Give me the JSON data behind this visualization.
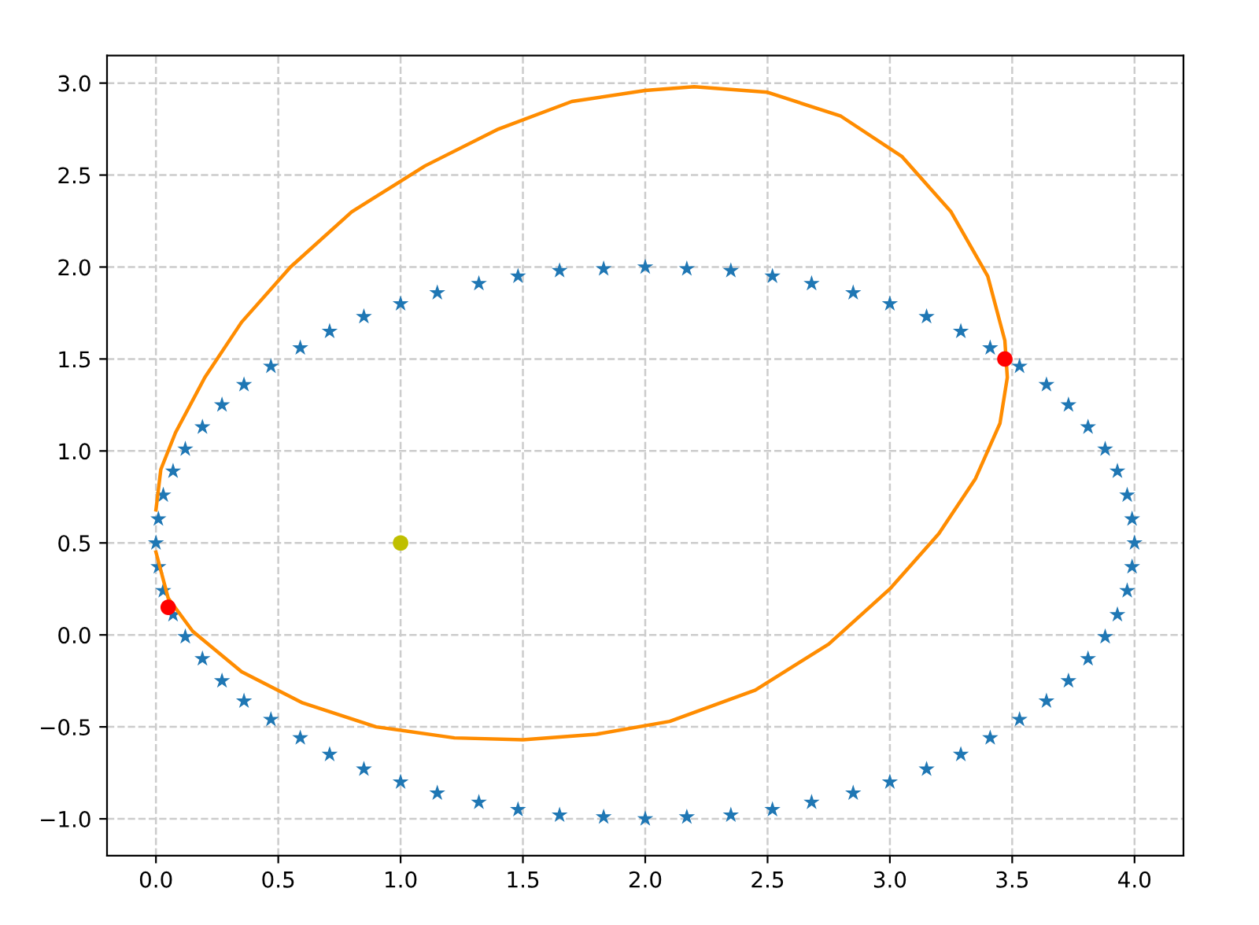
{
  "chart_data": {
    "type": "scatter",
    "xlim": [
      -0.2,
      4.2
    ],
    "ylim": [
      -1.2,
      3.15
    ],
    "xticks": [
      {
        "value": 0,
        "label": "0.0"
      },
      0.5,
      {
        "value": 1,
        "label": "1.0"
      },
      1.5,
      {
        "value": 2,
        "label": "2.0"
      },
      2.5,
      {
        "value": 3,
        "label": "3.0"
      },
      3.5,
      {
        "value": 4,
        "label": "4.0"
      }
    ],
    "yticks": [
      {
        "value": -1,
        "label": "−1.0"
      },
      {
        "value": -0.5,
        "label": "−0.5"
      },
      {
        "value": 0,
        "label": "0.0"
      },
      0.5,
      {
        "value": 1,
        "label": "1.0"
      },
      1.5,
      {
        "value": 2,
        "label": "2.0"
      },
      2.5,
      {
        "value": 3,
        "label": "3.0"
      }
    ],
    "grid": true,
    "series": [
      {
        "marker": "star",
        "color": "#1f77b4",
        "x": [
          4.0,
          3.99,
          3.97,
          3.93,
          3.88,
          3.81,
          3.73,
          3.64,
          3.53,
          3.41,
          3.29,
          3.15,
          3.0,
          2.85,
          2.68,
          2.52,
          2.35,
          2.17,
          2.0,
          1.83,
          1.65,
          1.48,
          1.32,
          1.15,
          1.0,
          0.85,
          0.71,
          0.59,
          0.47,
          0.36,
          0.27,
          0.19,
          0.12,
          0.07,
          0.03,
          0.01,
          0.0,
          0.01,
          0.03,
          0.07,
          0.12,
          0.19,
          0.27,
          0.36,
          0.47,
          0.59,
          0.71,
          0.85,
          1.0,
          1.15,
          1.32,
          1.48,
          1.65,
          1.83,
          2.0,
          2.17,
          2.35,
          2.52,
          2.68,
          2.85,
          3.0,
          3.15,
          3.29,
          3.41,
          3.53,
          3.64,
          3.73,
          3.81,
          3.88,
          3.93,
          3.97,
          3.99
        ],
        "values": [
          0.5,
          0.63,
          0.76,
          0.89,
          1.01,
          1.13,
          1.25,
          1.36,
          1.46,
          1.56,
          1.65,
          1.73,
          1.8,
          1.86,
          1.91,
          1.95,
          1.98,
          1.99,
          2.0,
          1.99,
          1.98,
          1.95,
          1.91,
          1.86,
          1.8,
          1.73,
          1.65,
          1.56,
          1.46,
          1.36,
          1.25,
          1.13,
          1.01,
          0.89,
          0.76,
          0.63,
          0.5,
          0.37,
          0.24,
          0.11,
          -0.01,
          -0.13,
          -0.25,
          -0.36,
          -0.46,
          -0.56,
          -0.65,
          -0.73,
          -0.8,
          -0.86,
          -0.91,
          -0.95,
          -0.98,
          -0.99,
          -1.0,
          -0.99,
          -0.98,
          -0.95,
          -0.91,
          -0.86,
          -0.8,
          -0.73,
          -0.65,
          -0.56,
          -0.46,
          -0.36,
          -0.25,
          -0.13,
          -0.01,
          0.11,
          0.24,
          0.37
        ]
      },
      {
        "type": "line",
        "line_style": "solid",
        "color": "#ff8c00",
        "x": [
          0.0,
          0.02,
          0.08,
          0.2,
          0.35,
          0.55,
          0.8,
          1.1,
          1.4,
          1.7,
          2.0,
          2.2,
          2.5,
          2.8,
          3.05,
          3.25,
          3.4,
          3.47,
          3.48,
          3.45,
          3.35,
          3.2,
          3.0,
          2.75,
          2.45,
          2.1,
          1.8,
          1.5,
          1.22,
          0.9,
          0.6,
          0.35,
          0.15,
          0.05,
          0.0
        ],
        "values": [
          0.68,
          0.9,
          1.1,
          1.4,
          1.7,
          2.0,
          2.3,
          2.55,
          2.75,
          2.9,
          2.96,
          2.98,
          2.95,
          2.82,
          2.6,
          2.3,
          1.95,
          1.6,
          1.4,
          1.15,
          0.85,
          0.55,
          0.25,
          -0.05,
          -0.3,
          -0.47,
          -0.54,
          -0.57,
          -0.56,
          -0.5,
          -0.37,
          -0.2,
          0.02,
          0.2,
          0.45
        ]
      },
      {
        "type": "scatter",
        "marker": "circle",
        "color": "#ff0000",
        "x": [
          0.05,
          3.47
        ],
        "values": [
          0.15,
          1.5
        ]
      },
      {
        "type": "scatter",
        "marker": "circle",
        "color": "#bfbf00",
        "x": [
          1.0
        ],
        "values": [
          0.5
        ]
      }
    ]
  }
}
